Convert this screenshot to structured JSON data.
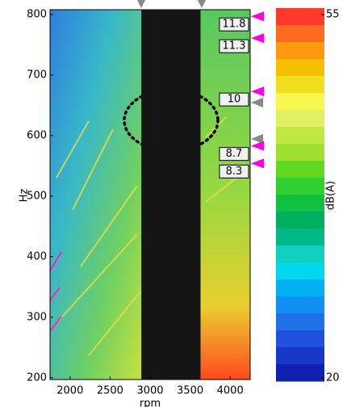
{
  "chart_data": {
    "type": "spectrogram",
    "x_label": "rpm",
    "y_label": "Hz",
    "xlim": [
      1750,
      4250
    ],
    "xticks": [
      2000,
      2500,
      3000,
      3500,
      4000
    ],
    "ylim": [
      197,
      808
    ],
    "yticks": [
      200,
      300,
      400,
      500,
      600,
      700,
      800
    ],
    "masked_x": [
      2890,
      3630
    ],
    "order_markers": [
      {
        "label": "11.8",
        "y": 797
      },
      {
        "label": "11.3",
        "y": 761
      },
      {
        "label": "10",
        "y": 673
      },
      {
        "label": "8.7",
        "y": 583
      },
      {
        "label": "8.3",
        "y": 554
      }
    ],
    "marker_color": "#ff00e0",
    "colorbar": {
      "label": "dB(A)",
      "lim": [
        20,
        55
      ],
      "ticks": [
        20,
        55
      ],
      "colors": [
        "#ff3a2a",
        "#ff6a20",
        "#ff9a10",
        "#f5c000",
        "#f0e020",
        "#f8f850",
        "#e0f060",
        "#c0e840",
        "#a0e030",
        "#60d820",
        "#30d030",
        "#10c040",
        "#00b060",
        "#00b888",
        "#10d0c0",
        "#00d8f0",
        "#00b0f0",
        "#1090f0",
        "#2070e8",
        "#2050e0",
        "#1838c8",
        "#1020b0"
      ]
    }
  }
}
